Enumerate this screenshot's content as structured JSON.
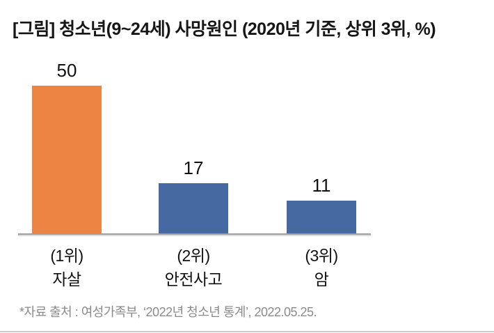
{
  "title": "[그림] 청소년(9~24세) 사망원인 (2020년 기준, 상위 3위, %)",
  "footer": "*자료 출처 : 여성가족부, ‘2022년 청소년 통계’, 2022.05.25.",
  "colors": {
    "bar_orange": "#ED8444",
    "bar_blue": "#4569A0",
    "axis_line": "#9E9E9E",
    "title_text": "#161616",
    "label_text": "#111111",
    "footer_text": "#8A8A8A",
    "bottom_border": "#CBCBCB"
  },
  "bars": [
    {
      "rank": "(1위)",
      "cause": "자살",
      "value": "50"
    },
    {
      "rank": "(2위)",
      "cause": "안전사고",
      "value": "17"
    },
    {
      "rank": "(3위)",
      "cause": "암",
      "value": "11"
    }
  ],
  "chart_data": {
    "type": "bar",
    "categories": [
      "(1위) 자살",
      "(2위) 안전사고",
      "(3위) 암"
    ],
    "values": [
      50,
      17,
      11
    ],
    "bar_colors": [
      "#ED8444",
      "#4569A0",
      "#4569A0"
    ],
    "title": "[그림] 청소년(9~24세) 사망원인 (2020년 기준, 상위 3위, %)",
    "xlabel": "",
    "ylabel": "",
    "unit": "%",
    "ylim": [
      0,
      55
    ],
    "grid": false,
    "legend": false,
    "value_labels_shown": true,
    "annotations": [
      "*자료 출처 : 여성가족부, ‘2022년 청소년 통계’, 2022.05.25."
    ]
  }
}
